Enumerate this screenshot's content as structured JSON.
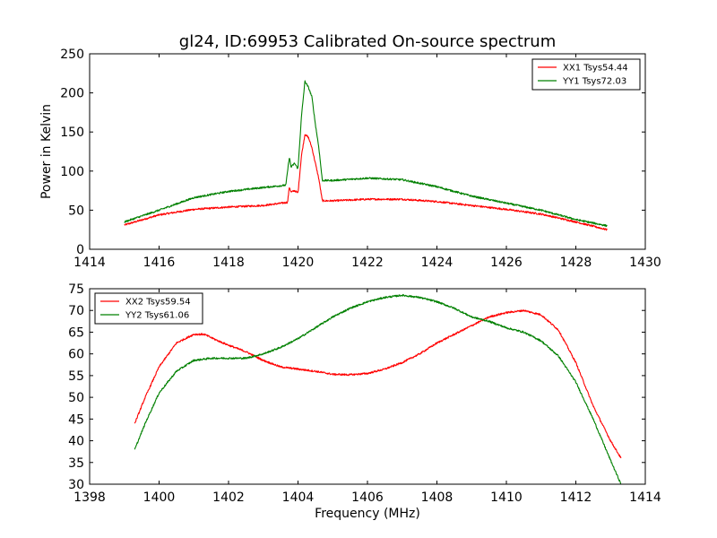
{
  "chart_data": [
    {
      "type": "line",
      "title": "gl24, ID:69953 Calibrated On-source spectrum",
      "xlabel": "",
      "ylabel": "Power in Kelvin",
      "xlim": [
        1414,
        1430
      ],
      "ylim": [
        0,
        250
      ],
      "xticks": [
        1414,
        1416,
        1418,
        1420,
        1422,
        1424,
        1426,
        1428,
        1430
      ],
      "yticks": [
        0,
        50,
        100,
        150,
        200,
        250
      ],
      "grid": false,
      "legend_position": "top-right",
      "series": [
        {
          "name": "XX1 Tsys54.44",
          "color": "#ff0000",
          "x": [
            1415.0,
            1416.0,
            1417.0,
            1418.0,
            1419.0,
            1419.7,
            1419.75,
            1419.8,
            1419.9,
            1420.0,
            1420.1,
            1420.2,
            1420.3,
            1420.4,
            1420.5,
            1420.6,
            1420.7,
            1421.0,
            1422.0,
            1423.0,
            1424.0,
            1425.0,
            1426.0,
            1427.0,
            1428.0,
            1428.9
          ],
          "y": [
            31,
            44,
            51,
            54,
            56,
            60,
            80,
            73,
            75,
            72,
            120,
            147,
            143,
            130,
            110,
            90,
            62,
            62,
            64,
            64,
            61,
            56,
            51,
            45,
            35,
            25
          ]
        },
        {
          "name": "YY1 Tsys72.03",
          "color": "#008000",
          "x": [
            1415.0,
            1416.0,
            1417.0,
            1418.0,
            1419.0,
            1419.65,
            1419.75,
            1419.8,
            1419.9,
            1420.0,
            1420.1,
            1420.2,
            1420.3,
            1420.4,
            1420.5,
            1420.6,
            1420.7,
            1421.0,
            1422.0,
            1423.0,
            1424.0,
            1425.0,
            1426.0,
            1427.0,
            1428.0,
            1428.9
          ],
          "y": [
            35,
            50,
            66,
            74,
            79,
            82,
            118,
            105,
            110,
            103,
            170,
            215,
            207,
            195,
            160,
            130,
            88,
            88,
            91,
            89,
            80,
            68,
            59,
            50,
            38,
            30
          ]
        }
      ]
    },
    {
      "type": "line",
      "title": "",
      "xlabel": "Frequency (MHz)",
      "ylabel": "",
      "xlim": [
        1398,
        1414
      ],
      "ylim": [
        30,
        75
      ],
      "xticks": [
        1398,
        1400,
        1402,
        1404,
        1406,
        1408,
        1410,
        1412,
        1414
      ],
      "yticks": [
        30,
        35,
        40,
        45,
        50,
        55,
        60,
        65,
        70,
        75
      ],
      "grid": false,
      "legend_position": "top-left",
      "series": [
        {
          "name": "XX2 Tsys59.54",
          "color": "#ff0000",
          "x": [
            1399.3,
            1399.6,
            1400.0,
            1400.5,
            1401.0,
            1401.3,
            1401.7,
            1402.0,
            1402.5,
            1403.0,
            1403.5,
            1404.0,
            1404.5,
            1405.0,
            1405.5,
            1406.0,
            1406.5,
            1407.0,
            1407.5,
            1408.0,
            1408.5,
            1409.0,
            1409.5,
            1410.0,
            1410.5,
            1411.0,
            1411.5,
            1412.0,
            1412.5,
            1413.0,
            1413.3
          ],
          "y": [
            44,
            50,
            57,
            62.5,
            64.5,
            64.5,
            63,
            62,
            60.5,
            58.5,
            57,
            56.5,
            56,
            55.3,
            55.2,
            55.5,
            56.5,
            58,
            60,
            62.5,
            64.5,
            66.5,
            68.5,
            69.5,
            70,
            69,
            65.5,
            58,
            48,
            40,
            36
          ]
        },
        {
          "name": "YY2 Tsys61.06",
          "color": "#008000",
          "x": [
            1399.3,
            1399.6,
            1400.0,
            1400.5,
            1401.0,
            1401.5,
            1402.0,
            1402.5,
            1403.0,
            1403.5,
            1404.0,
            1404.5,
            1405.0,
            1405.5,
            1406.0,
            1406.5,
            1407.0,
            1407.5,
            1408.0,
            1408.5,
            1409.0,
            1409.5,
            1410.0,
            1410.5,
            1411.0,
            1411.5,
            1412.0,
            1412.5,
            1413.0,
            1413.3
          ],
          "y": [
            38,
            44,
            51,
            56,
            58.5,
            59,
            59,
            59,
            60,
            61.5,
            63.5,
            66,
            68.5,
            70.5,
            72,
            73,
            73.5,
            73,
            72,
            70.5,
            68.5,
            67.5,
            66,
            65,
            63,
            59.5,
            53.5,
            45,
            35.5,
            30
          ]
        }
      ]
    }
  ]
}
